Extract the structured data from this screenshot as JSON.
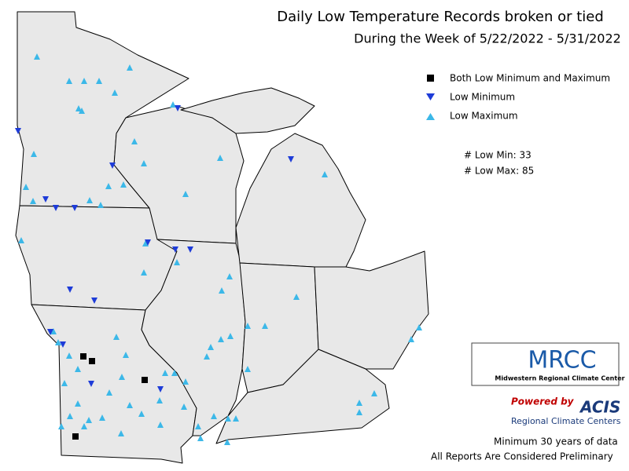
{
  "header": {
    "title": "Daily Low Temperature Records broken or tied",
    "subtitle": "During the Week of 5/22/2022 - 5/31/2022"
  },
  "legend": {
    "items": [
      "Both Low Minimum and Maximum",
      "Low Minimum",
      "Low Maximum"
    ]
  },
  "counts": [
    "# Low Min: 33",
    "# Low Max: 85"
  ],
  "logo": {
    "name": "MRCC",
    "full_name": "Midwestern Regional Climate Center"
  },
  "acis": {
    "powered": "Powered by",
    "name": "ACIS",
    "sub": "Regional Climate Centers"
  },
  "footer": [
    "Minimum 30 years of data",
    "All Reports Are Considered Preliminary"
  ]
}
